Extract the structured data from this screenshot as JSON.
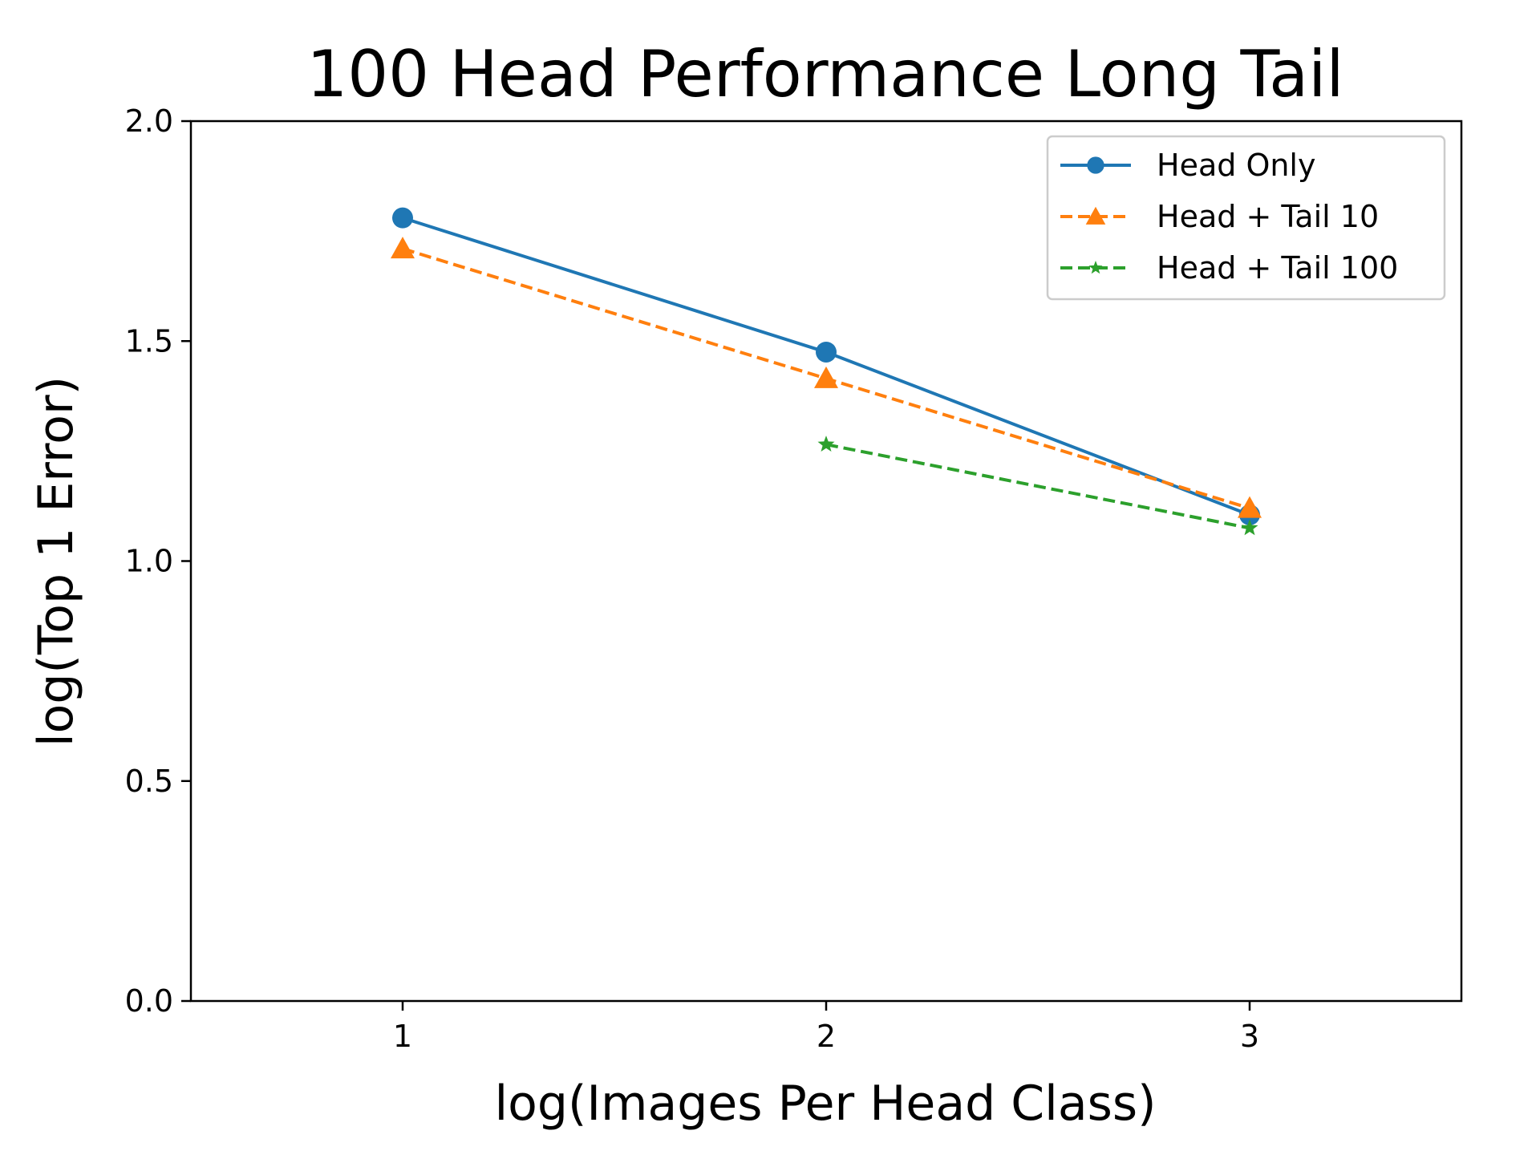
{
  "chart_data": {
    "type": "line",
    "title": "100 Head Performance Long Tail",
    "xlabel": "log(Images Per Head Class)",
    "ylabel": "log(Top 1 Error)",
    "xlim": [
      0.5,
      3.5
    ],
    "ylim": [
      0.0,
      2.0
    ],
    "xticks": [
      1,
      2,
      3
    ],
    "xtick_labels": [
      "1",
      "2",
      "3"
    ],
    "yticks": [
      0.0,
      0.5,
      1.0,
      1.5,
      2.0
    ],
    "ytick_labels": [
      "0.0",
      "0.5",
      "1.0",
      "1.5",
      "2.0"
    ],
    "grid": false,
    "legend_position": "top-right",
    "series": [
      {
        "name": "Head Only",
        "color": "#1f77b4",
        "linestyle": "solid",
        "marker": "circle",
        "x": [
          1,
          2,
          3
        ],
        "y": [
          1.78,
          1.475,
          1.105
        ]
      },
      {
        "name": "Head + Tail 10",
        "color": "#ff7f0e",
        "linestyle": "dashed",
        "marker": "triangle",
        "x": [
          1,
          2,
          3
        ],
        "y": [
          1.71,
          1.415,
          1.12
        ]
      },
      {
        "name": "Head + Tail 100",
        "color": "#2ca02c",
        "linestyle": "dashed",
        "marker": "star",
        "x": [
          2,
          3
        ],
        "y": [
          1.265,
          1.075
        ]
      }
    ]
  }
}
